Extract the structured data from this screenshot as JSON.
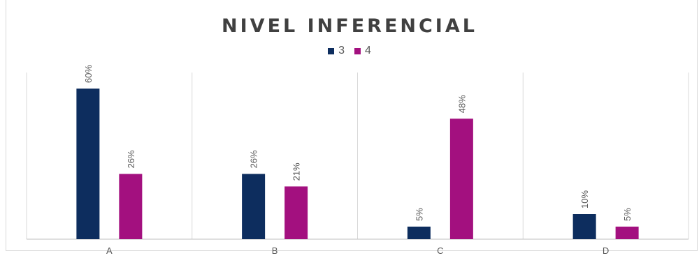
{
  "chart_data": {
    "type": "bar",
    "title": "NIVEL INFERENCIAL",
    "xlabel": "",
    "ylabel": "",
    "categories": [
      "A",
      "B",
      "C",
      "D"
    ],
    "series": [
      {
        "name": "3",
        "color": "#0d2d5e",
        "values": [
          60,
          26,
          5,
          10
        ],
        "labels": [
          "60%",
          "26%",
          "5%",
          "10%"
        ]
      },
      {
        "name": "4",
        "color": "#a3107f",
        "values": [
          26,
          21,
          48,
          5
        ],
        "labels": [
          "26%",
          "21%",
          "48%",
          "5%"
        ]
      }
    ],
    "ylim": [
      0,
      70
    ],
    "value_format": "percent",
    "grid": false,
    "category_separators": true,
    "legend_position": "top"
  }
}
